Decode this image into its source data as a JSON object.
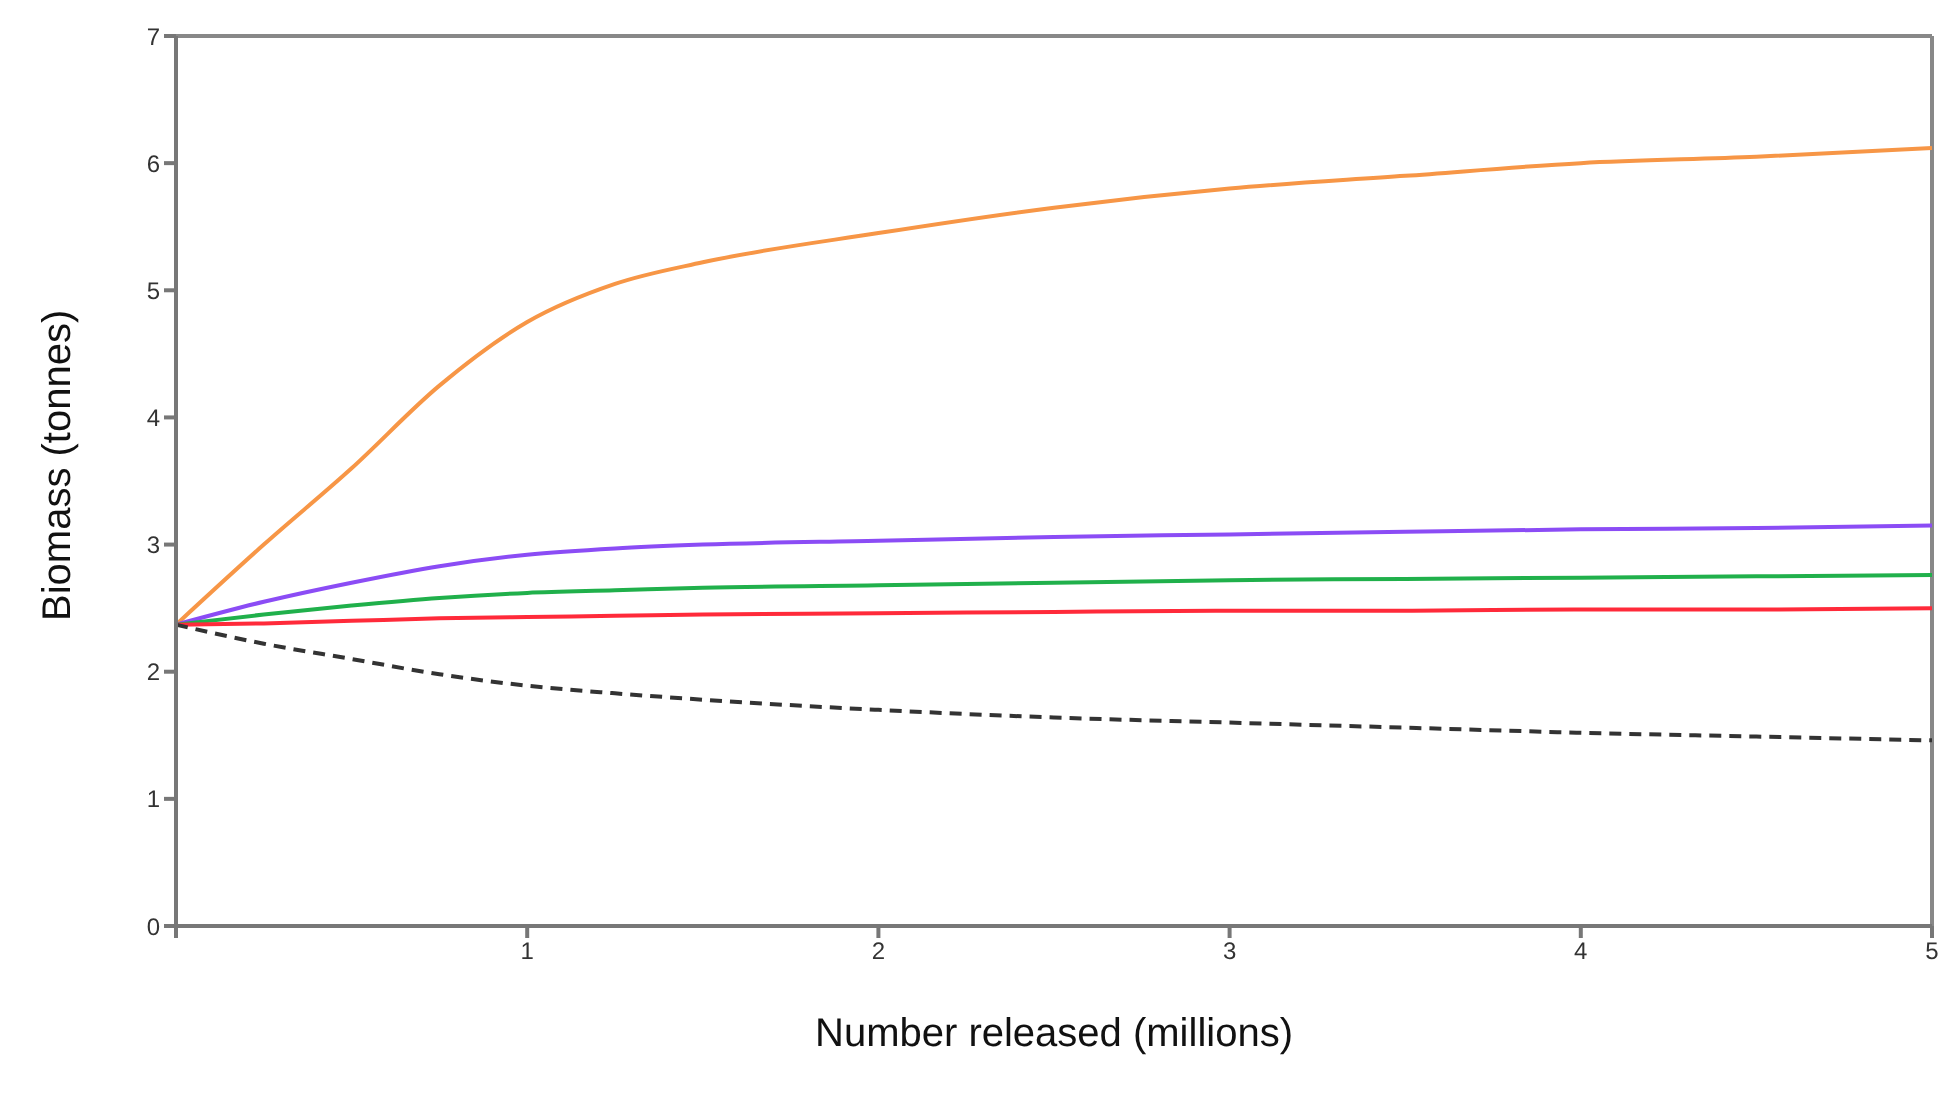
{
  "chart_data": {
    "type": "line",
    "xlabel": "Number released (millions)",
    "ylabel": "Biomass (tonnes)",
    "x": [
      0,
      0.25,
      0.5,
      0.75,
      1,
      1.25,
      1.5,
      2,
      2.5,
      3,
      3.5,
      4,
      4.5,
      5
    ],
    "xlim": [
      0,
      5
    ],
    "xticks": [
      {
        "value": 0,
        "label": null
      },
      1,
      2,
      3,
      4,
      5
    ],
    "ylim": [
      0,
      7
    ],
    "yticks": [
      0,
      1,
      2,
      3,
      4,
      5,
      6,
      7
    ],
    "grid": false,
    "legend": false,
    "marker": "none",
    "line_style": "solid",
    "series": [
      {
        "color": "#f79646",
        "values": [
          2.37,
          3.0,
          3.6,
          4.25,
          4.75,
          5.05,
          5.22,
          5.45,
          5.65,
          5.8,
          5.9,
          6.0,
          6.05,
          6.12
        ]
      },
      {
        "color": "#8b4cf5",
        "values": [
          2.37,
          2.55,
          2.7,
          2.83,
          2.92,
          2.97,
          3.0,
          3.03,
          3.06,
          3.08,
          3.1,
          3.12,
          3.13,
          3.15
        ]
      },
      {
        "color": "#20b04b",
        "values": [
          2.37,
          2.45,
          2.52,
          2.58,
          2.62,
          2.64,
          2.66,
          2.68,
          2.7,
          2.72,
          2.73,
          2.74,
          2.75,
          2.76
        ]
      },
      {
        "color": "#ff2a3a",
        "values": [
          2.37,
          2.38,
          2.4,
          2.42,
          2.43,
          2.44,
          2.45,
          2.46,
          2.47,
          2.48,
          2.48,
          2.49,
          2.49,
          2.5
        ]
      },
      {
        "color": "#333333",
        "line_style": "dashed",
        "values": [
          2.37,
          2.22,
          2.1,
          1.98,
          1.89,
          1.83,
          1.78,
          1.7,
          1.64,
          1.6,
          1.56,
          1.52,
          1.49,
          1.46
        ]
      }
    ]
  }
}
